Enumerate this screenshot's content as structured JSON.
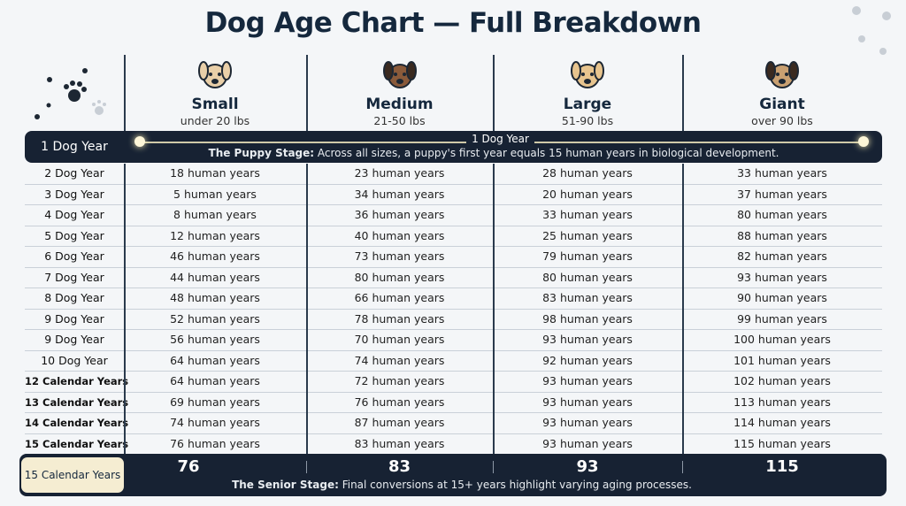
{
  "title": "Dog Age Chart — Full Breakdown",
  "columns": [
    {
      "name": "Small",
      "sub": "under 20 lbs"
    },
    {
      "name": "Medium",
      "sub": "21-50 lbs"
    },
    {
      "name": "Large",
      "sub": "51-90 lbs"
    },
    {
      "name": "Giant",
      "sub": "over 90 lbs"
    }
  ],
  "puppy": {
    "label": "1 Dog Year",
    "center": "1 Dog Year",
    "note_bold": "The Puppy Stage:",
    "note": " Across all sizes, a puppy's first year equals 15 human years in biological development."
  },
  "table": {
    "rows": [
      [
        "2 Dog Year",
        "18 human years",
        "23 human years",
        "28 human years",
        "33 human years"
      ],
      [
        "3 Dog Year",
        "5 human years",
        "34 human years",
        "20 human years",
        "37 human years"
      ],
      [
        "4 Dog Year",
        "8 human years",
        "36 human years",
        "33 human years",
        "80 human years"
      ],
      [
        "5 Dog Year",
        "12 human years",
        "40 human years",
        "25 human years",
        "88 human years"
      ],
      [
        "6 Dog Year",
        "46 human years",
        "73 human years",
        "79 human years",
        "82 human years"
      ],
      [
        "7 Dog Year",
        "44 human years",
        "80 human years",
        "80 human years",
        "93 human years"
      ],
      [
        "8 Dog Year",
        "48 human years",
        "66 human years",
        "83 human years",
        "90 human years"
      ],
      [
        "9 Dog Year",
        "52 human years",
        "78 human years",
        "98 human years",
        "99 human years"
      ],
      [
        "9 Dog Year",
        "56 human years",
        "70 human years",
        "93 human years",
        "100 human years"
      ],
      [
        "10 Dog Year",
        "64 human years",
        "74 human years",
        "92 human years",
        "101 human years"
      ],
      [
        "12 Calendar Years",
        "64 human years",
        "72 human years",
        "93 human years",
        "102 human years"
      ],
      [
        "13 Calendar Years",
        "69 human years",
        "76 human years",
        "93 human years",
        "113 human years"
      ],
      [
        "14 Calendar Years",
        "74 human years",
        "87 human years",
        "93 human years",
        "114 human years"
      ],
      [
        "15 Calendar Years",
        "76 human years",
        "83 human years",
        "93 human years",
        "115 human years"
      ]
    ]
  },
  "footer": {
    "label": "15 Calendar Years",
    "values": [
      "76",
      "83",
      "93",
      "115"
    ],
    "note_bold": "The Senior Stage:",
    "note": " Final conversions at 15+ years highlight varying aging processes."
  }
}
